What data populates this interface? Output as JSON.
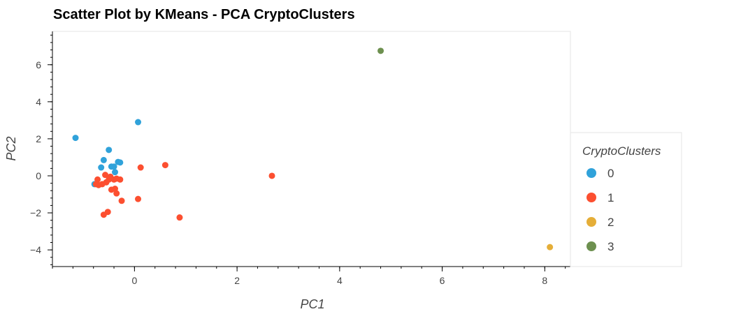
{
  "chart_data": {
    "type": "scatter",
    "title": "Scatter Plot by KMeans - PCA CryptoClusters",
    "xlabel": "PC1",
    "ylabel": "PC2",
    "xlim": [
      -1.6,
      8.5
    ],
    "ylim": [
      -4.9,
      7.8
    ],
    "x_ticks": [
      0,
      2,
      4,
      6,
      8
    ],
    "y_ticks": [
      -4,
      -2,
      0,
      2,
      4,
      6
    ],
    "grid": false,
    "legend": {
      "title": "CryptoClusters",
      "placement": "right"
    },
    "series": [
      {
        "name": "0",
        "color": "#30a2da",
        "points": [
          [
            -1.15,
            2.05
          ],
          [
            0.07,
            2.9
          ],
          [
            -0.5,
            1.4
          ],
          [
            -0.6,
            0.85
          ],
          [
            -0.65,
            0.45
          ],
          [
            -0.45,
            0.5
          ],
          [
            -0.4,
            0.5
          ],
          [
            -0.32,
            0.75
          ],
          [
            -0.28,
            0.72
          ],
          [
            -0.38,
            0.2
          ],
          [
            -0.78,
            -0.45
          ]
        ]
      },
      {
        "name": "1",
        "color": "#fc4f30",
        "points": [
          [
            -0.72,
            -0.2
          ],
          [
            -0.75,
            -0.45
          ],
          [
            -0.7,
            -0.5
          ],
          [
            -0.63,
            -0.45
          ],
          [
            -0.57,
            0.05
          ],
          [
            -0.55,
            -0.35
          ],
          [
            -0.5,
            -0.2
          ],
          [
            -0.47,
            -0.05
          ],
          [
            -0.45,
            -0.75
          ],
          [
            -0.4,
            -0.2
          ],
          [
            -0.38,
            -0.7
          ],
          [
            -0.35,
            -0.15
          ],
          [
            -0.35,
            -0.95
          ],
          [
            -0.28,
            -0.2
          ],
          [
            -0.25,
            -1.35
          ],
          [
            -0.52,
            -1.95
          ],
          [
            -0.6,
            -2.1
          ],
          [
            0.07,
            -1.25
          ],
          [
            0.12,
            0.45
          ],
          [
            0.6,
            0.58
          ],
          [
            0.88,
            -2.25
          ],
          [
            2.68,
            0.0
          ]
        ]
      },
      {
        "name": "2",
        "color": "#e5ae38",
        "points": [
          [
            8.1,
            -3.85
          ]
        ]
      },
      {
        "name": "3",
        "color": "#6d904f",
        "points": [
          [
            4.8,
            6.75
          ]
        ]
      }
    ]
  }
}
